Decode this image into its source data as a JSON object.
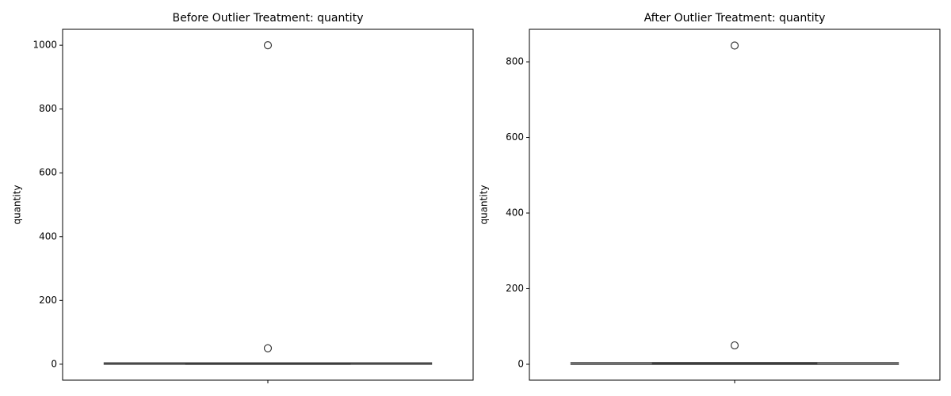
{
  "chart_data": [
    {
      "type": "box",
      "title": "Before Outlier Treatment: quantity",
      "y_label": "quantity",
      "categories": [
        null
      ],
      "color": "#3d3d3d",
      "min": 0,
      "q1": 0,
      "median": 1,
      "q3": 2,
      "max": 4,
      "outliers": [
        1000,
        50
      ],
      "ylim": [
        -50,
        1050
      ],
      "yticks": [
        0,
        200,
        400,
        600,
        800,
        1000
      ]
    },
    {
      "type": "box",
      "title": "After Outlier Treatment: quantity",
      "y_label": "quantity",
      "categories": [
        null
      ],
      "color": "#3d3d3d",
      "min": 0,
      "q1": 1,
      "median": 2,
      "q3": 4,
      "max": 4,
      "outliers": [
        843,
        50
      ],
      "ylim": [
        -42,
        886
      ],
      "yticks": [
        0,
        200,
        400,
        600,
        800
      ]
    }
  ]
}
